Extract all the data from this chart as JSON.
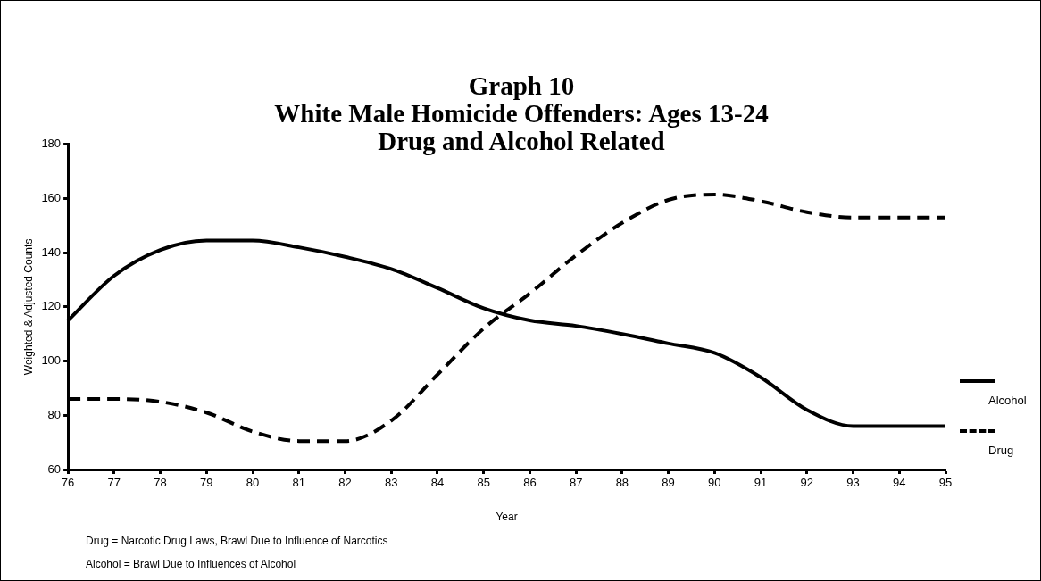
{
  "chart_data": {
    "type": "line",
    "title": "Graph 10\nWhite Male Homicide Offenders: Ages 13-24\nDrug and Alcohol Related",
    "xlabel": "Year",
    "ylabel": "Weighted & Adjusted Counts",
    "categories": [
      "76",
      "77",
      "78",
      "79",
      "80",
      "81",
      "82",
      "83",
      "84",
      "85",
      "86",
      "87",
      "88",
      "89",
      "90",
      "91",
      "92",
      "93",
      "94",
      "95"
    ],
    "series": [
      {
        "name": "Alcohol",
        "color": "#000000",
        "line_style": "solid",
        "values": [
          115,
          131.5,
          141,
          144.5,
          144.5,
          142,
          138.5,
          134,
          127,
          119.5,
          115,
          113,
          110,
          106.5,
          103,
          94,
          82,
          76,
          76,
          76
        ]
      },
      {
        "name": "Drug",
        "color": "#000000",
        "line_style": "dashed",
        "values": [
          86,
          86,
          85,
          81,
          74,
          70.5,
          70.5,
          78,
          95,
          112,
          125,
          139,
          151,
          159.5,
          161.5,
          159,
          155,
          153,
          153,
          153
        ]
      }
    ],
    "ylim": [
      60,
      180
    ],
    "yticks": [
      60,
      80,
      100,
      120,
      140,
      160,
      180
    ],
    "grid": false,
    "legend": "right",
    "marker": "none",
    "annotations": [
      "Drug = Narcotic Drug Laws, Brawl Due to Influence of Narcotics",
      "Alcohol = Brawl Due to Influences of Alcohol"
    ]
  }
}
